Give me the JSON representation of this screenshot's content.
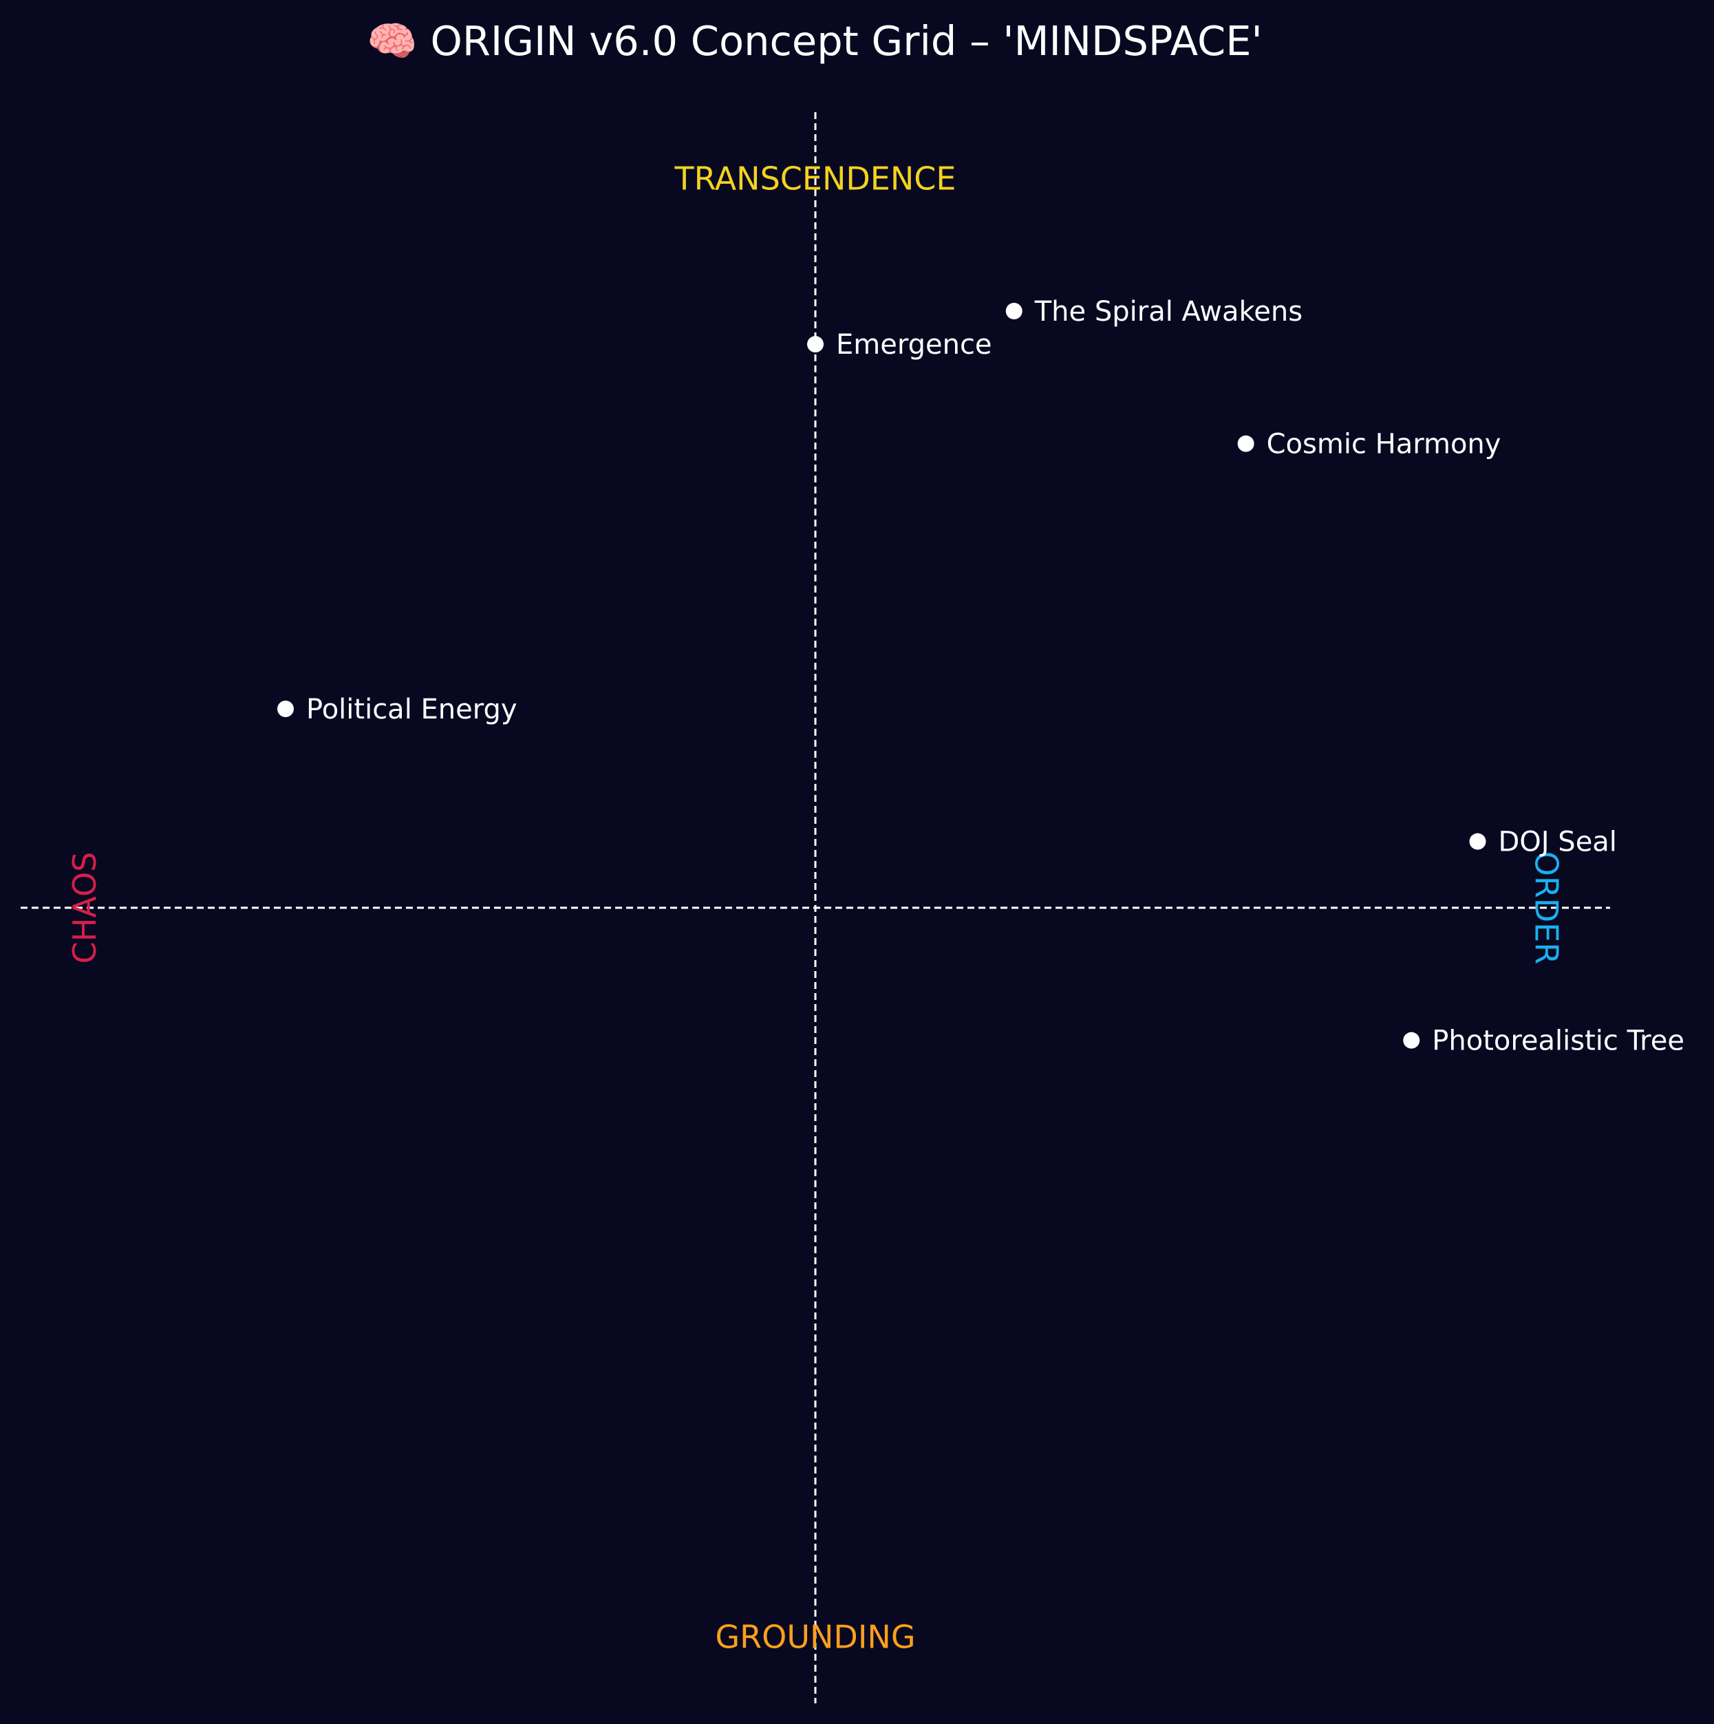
{
  "chart_data": {
    "type": "scatter",
    "title": "🧠 ORIGIN v6.0 Concept Grid – 'MINDSPACE'",
    "xlim": [
      -1.2,
      1.2
    ],
    "ylim": [
      -1.2,
      1.2
    ],
    "grid": false,
    "axis_labels": {
      "top": "TRANSCENDENCE",
      "bottom": "GROUNDING",
      "left": "CHAOS",
      "right": "ORDER"
    },
    "points": [
      {
        "label": "The Spiral Awakens",
        "x": 0.3,
        "y": 0.9
      },
      {
        "label": "Emergence",
        "x": 0.0,
        "y": 0.85
      },
      {
        "label": "Cosmic Harmony",
        "x": 0.65,
        "y": 0.7
      },
      {
        "label": "Political Energy",
        "x": -0.8,
        "y": 0.3
      },
      {
        "label": "DOJ Seal",
        "x": 1.0,
        "y": 0.1
      },
      {
        "label": "Photorealistic Tree",
        "x": 0.9,
        "y": -0.2
      }
    ]
  },
  "colors": {
    "background": "#080921",
    "text": "#ffffff",
    "axis_line": "#ffffff",
    "point": "#ffffff",
    "transcendence": "#f5d21e",
    "grounding": "#ff9f1c",
    "chaos": "#d81e4a",
    "order": "#1ab0f0"
  }
}
